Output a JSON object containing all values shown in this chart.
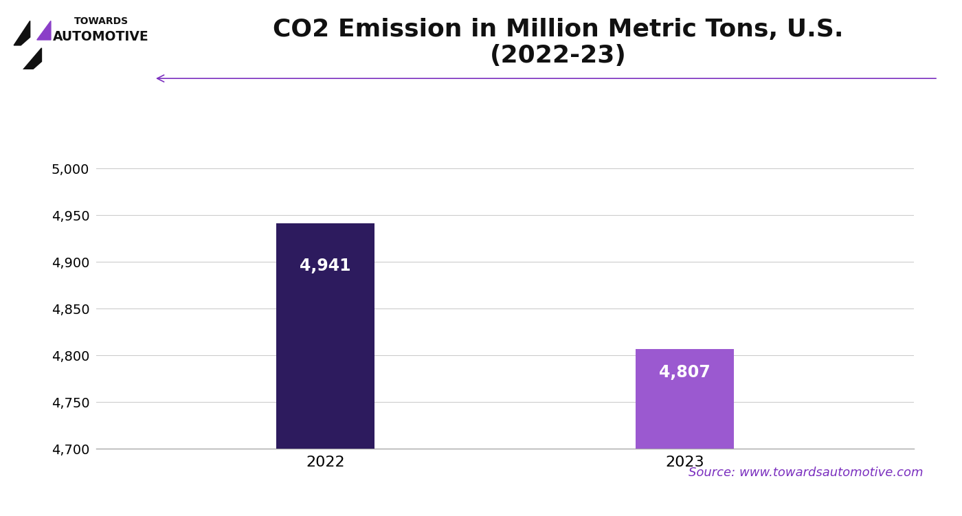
{
  "title_line1": "CO2 Emission in Million Metric Tons, U.S.",
  "title_line2": "(2022-23)",
  "categories": [
    "2022",
    "2023"
  ],
  "values": [
    4941,
    4807
  ],
  "bar_colors": [
    "#2d1b5e",
    "#9b59d0"
  ],
  "bar_labels": [
    "4,941",
    "4,807"
  ],
  "ylim_min": 4700,
  "ylim_max": 5020,
  "yticks": [
    4700,
    4750,
    4800,
    4850,
    4900,
    4950,
    5000
  ],
  "bar_width": 0.12,
  "bar_label_color": "#ffffff",
  "bar_label_fontsize": 17,
  "title_fontsize": 26,
  "tick_fontsize": 14,
  "grid_color": "#cccccc",
  "background_color": "#ffffff",
  "source_text": "Source: www.towardsautomotive.com",
  "source_color": "#7b2fbf",
  "source_fontsize": 13,
  "arrow_color": "#7b2fbf",
  "bottom_bar_color": "#7b2fbf",
  "logo_text_towards": "TOWARDS",
  "logo_text_automotive": "AUTOMOTIVE",
  "x_positions": [
    0.28,
    0.72
  ],
  "xlim": [
    0.0,
    1.0
  ]
}
